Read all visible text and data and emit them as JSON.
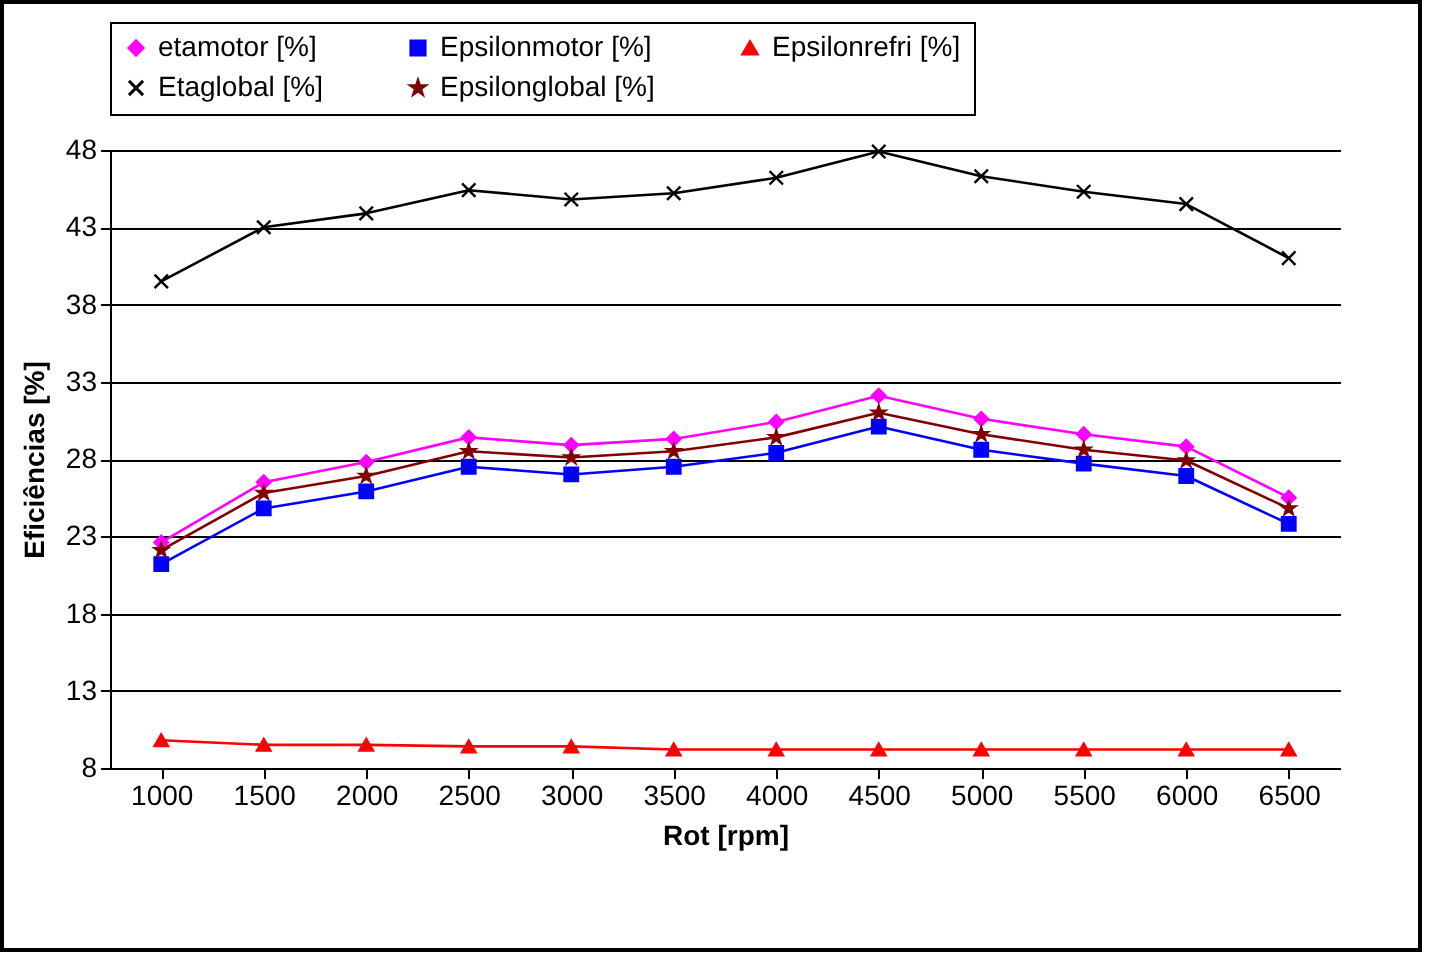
{
  "chart_data": {
    "type": "line",
    "xlabel": "Rot [rpm]",
    "ylabel": "Eficiências [%]",
    "categories": [
      "1000",
      "1500",
      "2000",
      "2500",
      "3000",
      "3500",
      "4000",
      "4500",
      "5000",
      "5500",
      "6000",
      "6500"
    ],
    "ylim": [
      8,
      48
    ],
    "yticks": [
      8,
      13,
      18,
      23,
      28,
      33,
      38,
      43,
      48
    ],
    "grid": "y",
    "legend": "top",
    "series": [
      {
        "name": "etamotor [%]",
        "color": "#ff00ff",
        "marker": "diamond",
        "values": [
          22.6,
          26.5,
          27.8,
          29.4,
          28.9,
          29.3,
          30.4,
          32.1,
          30.6,
          29.6,
          28.8,
          25.5
        ]
      },
      {
        "name": "Epsilonmotor [%]",
        "color": "#0000ff",
        "marker": "square",
        "values": [
          21.2,
          24.8,
          25.9,
          27.5,
          27.0,
          27.5,
          28.4,
          30.1,
          28.6,
          27.7,
          26.9,
          23.8
        ]
      },
      {
        "name": "Epsilonrefri [%]",
        "color": "#ff0000",
        "marker": "triangle",
        "values": [
          9.8,
          9.5,
          9.5,
          9.4,
          9.4,
          9.2,
          9.2,
          9.2,
          9.2,
          9.2,
          9.2,
          9.2
        ]
      },
      {
        "name": "Etaglobal [%]",
        "color": "#000000",
        "marker": "cross",
        "values": [
          39.5,
          43.0,
          43.9,
          45.4,
          44.8,
          45.2,
          46.2,
          47.9,
          46.3,
          45.3,
          44.5,
          41.0
        ]
      },
      {
        "name": "Epsilonglobal [%]",
        "color": "#800000",
        "marker": "star",
        "values": [
          22.1,
          25.8,
          26.9,
          28.5,
          28.1,
          28.5,
          29.4,
          31.0,
          29.6,
          28.6,
          27.9,
          24.8
        ]
      }
    ]
  }
}
